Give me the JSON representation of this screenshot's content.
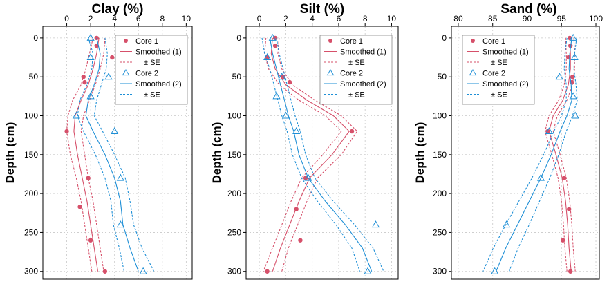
{
  "colors": {
    "core1": "#d6506a",
    "core2": "#1e8fd6"
  },
  "chart_data": [
    {
      "type": "line",
      "title": "Clay (%)",
      "xlabel": "",
      "ylabel": "Depth (cm)",
      "xlim": [
        -2,
        10.5
      ],
      "ylim": [
        310,
        -15
      ],
      "xticks": [
        0,
        2,
        4,
        6,
        8,
        10
      ],
      "yticks": [
        0,
        50,
        100,
        150,
        200,
        250,
        300
      ],
      "grid": true,
      "axis_position": "x-top",
      "legend_position": "top-right",
      "legend": [
        "Core 1",
        "Smoothed (1)",
        "± SE",
        "Core 2",
        "Smoothed (2)",
        "± SE"
      ],
      "series": [
        {
          "name": "Core 1",
          "kind": "points",
          "marker": "circle",
          "color": "core1",
          "x": [
            2.5,
            2.5,
            3.8,
            1.4,
            1.5,
            0,
            1.8,
            1.1,
            2.0,
            3.2
          ],
          "y": [
            0,
            10,
            25,
            50,
            57,
            120,
            180,
            217,
            260,
            300
          ]
        },
        {
          "name": "Smoothed (1)",
          "kind": "line",
          "style": "solid",
          "color": "core1",
          "x": [
            2.7,
            2.5,
            2.2,
            1.8,
            1.2,
            0.7,
            0.6,
            0.9,
            1.3,
            1.7,
            2.0,
            2.3,
            2.6
          ],
          "y": [
            0,
            20,
            40,
            60,
            80,
            100,
            120,
            150,
            180,
            210,
            240,
            270,
            300
          ]
        },
        {
          "name": "± SE",
          "kind": "line",
          "style": "dashed",
          "color": "core1",
          "x": [
            3.2,
            3.1,
            2.8,
            2.4,
            1.9,
            1.4,
            1.2,
            1.5,
            1.8,
            2.2,
            2.5,
            2.8,
            3.1
          ],
          "y": [
            0,
            20,
            40,
            60,
            80,
            100,
            120,
            150,
            180,
            210,
            240,
            270,
            300
          ]
        },
        {
          "name": "± SE",
          "kind": "line",
          "style": "dashed",
          "color": "core1",
          "x": [
            2.2,
            1.9,
            1.6,
            1.2,
            0.5,
            0.1,
            0.0,
            0.3,
            0.8,
            1.2,
            1.5,
            1.8,
            2.1
          ],
          "y": [
            0,
            20,
            40,
            60,
            80,
            100,
            120,
            150,
            180,
            210,
            240,
            270,
            300
          ]
        },
        {
          "name": "Core 2",
          "kind": "points",
          "marker": "triangle",
          "color": "core2",
          "x": [
            2.0,
            2.0,
            3.5,
            2.0,
            0.8,
            4.0,
            4.5,
            4.5,
            6.4
          ],
          "y": [
            0,
            25,
            50,
            75,
            100,
            120,
            180,
            240,
            300
          ]
        },
        {
          "name": "Smoothed (2)",
          "kind": "line",
          "style": "solid",
          "color": "core2",
          "x": [
            2.5,
            2.8,
            2.7,
            2.3,
            1.8,
            1.6,
            2.2,
            3.2,
            4.0,
            4.5,
            4.7,
            5.3,
            6.0
          ],
          "y": [
            0,
            20,
            40,
            60,
            80,
            100,
            120,
            150,
            180,
            210,
            240,
            270,
            300
          ]
        },
        {
          "name": "± SE",
          "kind": "line",
          "style": "dashed",
          "color": "core2",
          "x": [
            3.2,
            3.4,
            3.3,
            2.9,
            2.5,
            2.3,
            3.0,
            4.0,
            4.9,
            5.3,
            5.6,
            6.3,
            7.3
          ],
          "y": [
            0,
            20,
            40,
            60,
            80,
            100,
            120,
            150,
            180,
            210,
            240,
            270,
            300
          ]
        },
        {
          "name": "± SE",
          "kind": "line",
          "style": "dashed",
          "color": "core2",
          "x": [
            1.8,
            2.2,
            2.1,
            1.7,
            1.1,
            0.9,
            1.4,
            2.4,
            3.2,
            3.7,
            3.9,
            4.4,
            4.8
          ],
          "y": [
            0,
            20,
            40,
            60,
            80,
            100,
            120,
            150,
            180,
            210,
            240,
            270,
            300
          ]
        }
      ]
    },
    {
      "type": "line",
      "title": "Silt (%)",
      "xlabel": "",
      "ylabel": "Depth (cm)",
      "xlim": [
        -1,
        10.5
      ],
      "ylim": [
        310,
        -15
      ],
      "xticks": [
        0,
        2,
        4,
        6,
        8,
        10
      ],
      "yticks": [
        0,
        50,
        100,
        150,
        200,
        250,
        300
      ],
      "grid": true,
      "axis_position": "x-top",
      "legend_position": "top-right",
      "legend": [
        "Core 1",
        "Smoothed (1)",
        "± SE",
        "Core 2",
        "Smoothed (2)",
        "± SE"
      ],
      "series": [
        {
          "name": "Core 1",
          "kind": "points",
          "marker": "circle",
          "color": "core1",
          "x": [
            1.2,
            1.2,
            0.6,
            1.8,
            2.3,
            7.0,
            3.5,
            2.8,
            3.1,
            0.6
          ],
          "y": [
            0,
            10,
            25,
            50,
            57,
            120,
            180,
            220,
            260,
            300
          ]
        },
        {
          "name": "Smoothed (1)",
          "kind": "line",
          "style": "solid",
          "color": "core1",
          "x": [
            1.0,
            0.9,
            1.2,
            2.0,
            3.6,
            5.6,
            6.8,
            5.5,
            3.8,
            3.0,
            2.3,
            1.6,
            1.0
          ],
          "y": [
            0,
            20,
            40,
            60,
            80,
            100,
            120,
            150,
            180,
            210,
            240,
            270,
            300
          ]
        },
        {
          "name": "± SE",
          "kind": "line",
          "style": "dashed",
          "color": "core1",
          "x": [
            1.5,
            1.4,
            1.7,
            2.5,
            4.2,
            6.2,
            7.4,
            6.2,
            4.4,
            3.6,
            2.9,
            2.2,
            1.7
          ],
          "y": [
            0,
            20,
            40,
            60,
            80,
            100,
            120,
            150,
            180,
            210,
            240,
            270,
            300
          ]
        },
        {
          "name": "± SE",
          "kind": "line",
          "style": "dashed",
          "color": "core1",
          "x": [
            0.5,
            0.4,
            0.7,
            1.5,
            3.0,
            5.0,
            6.2,
            4.8,
            3.2,
            2.4,
            1.7,
            1.0,
            0.3
          ],
          "y": [
            0,
            20,
            40,
            60,
            80,
            100,
            120,
            150,
            180,
            210,
            240,
            270,
            300
          ]
        },
        {
          "name": "Core 2",
          "kind": "points",
          "marker": "triangle",
          "color": "core2",
          "x": [
            1.0,
            0.6,
            1.7,
            1.3,
            2.0,
            2.8,
            3.7,
            8.8,
            8.2
          ],
          "y": [
            0,
            25,
            50,
            75,
            100,
            120,
            180,
            240,
            300
          ]
        },
        {
          "name": "Smoothed (2)",
          "kind": "line",
          "style": "solid",
          "color": "core2",
          "x": [
            0.8,
            1.0,
            1.3,
            1.6,
            1.9,
            2.2,
            2.6,
            3.0,
            3.7,
            5.0,
            6.5,
            7.8,
            8.5
          ],
          "y": [
            0,
            20,
            40,
            60,
            80,
            100,
            120,
            150,
            180,
            210,
            240,
            270,
            300
          ]
        },
        {
          "name": "± SE",
          "kind": "line",
          "style": "dashed",
          "color": "core2",
          "x": [
            1.3,
            1.5,
            1.8,
            2.1,
            2.4,
            2.7,
            3.1,
            3.5,
            4.2,
            5.6,
            7.2,
            8.6,
            9.4
          ],
          "y": [
            0,
            20,
            40,
            60,
            80,
            100,
            120,
            150,
            180,
            210,
            240,
            270,
            300
          ]
        },
        {
          "name": "± SE",
          "kind": "line",
          "style": "dashed",
          "color": "core2",
          "x": [
            0.2,
            0.4,
            0.8,
            1.1,
            1.4,
            1.7,
            2.1,
            2.5,
            3.2,
            4.4,
            5.8,
            7.0,
            7.6
          ],
          "y": [
            0,
            20,
            40,
            60,
            80,
            100,
            120,
            150,
            180,
            210,
            240,
            270,
            300
          ]
        }
      ]
    },
    {
      "type": "line",
      "title": "Sand (%)",
      "xlabel": "",
      "ylabel": "Depth (cm)",
      "xlim": [
        79,
        100.5
      ],
      "ylim": [
        310,
        -15
      ],
      "xticks": [
        80,
        85,
        90,
        95,
        100
      ],
      "yticks": [
        0,
        50,
        100,
        150,
        200,
        250,
        300
      ],
      "grid": true,
      "axis_position": "x-top",
      "legend_position": "top-left",
      "legend": [
        "Core 1",
        "Smoothed (1)",
        "± SE",
        "Core 2",
        "Smoothed (2)",
        "± SE"
      ],
      "series": [
        {
          "name": "Core 1",
          "kind": "points",
          "marker": "circle",
          "color": "core1",
          "x": [
            96.2,
            96.3,
            96.0,
            96.6,
            96.5,
            93.0,
            95.4,
            96.1,
            95.2,
            96.3
          ],
          "y": [
            0,
            10,
            25,
            50,
            57,
            120,
            180,
            220,
            260,
            300
          ]
        },
        {
          "name": "Smoothed (1)",
          "kind": "line",
          "style": "solid",
          "color": "core1",
          "x": [
            96.2,
            96.3,
            96.3,
            96.0,
            95.2,
            93.8,
            93.2,
            94.2,
            95.1,
            95.6,
            95.9,
            96.1,
            96.4
          ],
          "y": [
            0,
            20,
            40,
            60,
            80,
            100,
            120,
            150,
            180,
            210,
            240,
            270,
            300
          ]
        },
        {
          "name": "± SE",
          "kind": "line",
          "style": "dashed",
          "color": "core1",
          "x": [
            96.8,
            96.9,
            96.9,
            96.6,
            95.8,
            94.4,
            93.8,
            94.8,
            95.7,
            96.2,
            96.5,
            96.7,
            97.0
          ],
          "y": [
            0,
            20,
            40,
            60,
            80,
            100,
            120,
            150,
            180,
            210,
            240,
            270,
            300
          ]
        },
        {
          "name": "± SE",
          "kind": "line",
          "style": "dashed",
          "color": "core1",
          "x": [
            95.6,
            95.7,
            95.7,
            95.4,
            94.6,
            93.2,
            92.6,
            93.6,
            94.5,
            95.0,
            95.3,
            95.5,
            95.8
          ],
          "y": [
            0,
            20,
            40,
            60,
            80,
            100,
            120,
            150,
            180,
            210,
            240,
            270,
            300
          ]
        },
        {
          "name": "Core 2",
          "kind": "points",
          "marker": "triangle",
          "color": "core2",
          "x": [
            96.7,
            96.9,
            94.7,
            96.7,
            97.0,
            93.2,
            92.0,
            87.0,
            85.3
          ],
          "y": [
            0,
            25,
            50,
            75,
            100,
            120,
            180,
            240,
            300
          ]
        },
        {
          "name": "Smoothed (2)",
          "kind": "line",
          "style": "solid",
          "color": "core2",
          "x": [
            96.5,
            96.2,
            96.1,
            96.4,
            96.5,
            95.8,
            94.8,
            93.5,
            92.0,
            90.3,
            88.6,
            86.9,
            85.5
          ],
          "y": [
            0,
            20,
            40,
            60,
            80,
            100,
            120,
            150,
            180,
            210,
            240,
            270,
            300
          ]
        },
        {
          "name": "± SE",
          "kind": "line",
          "style": "dashed",
          "color": "core2",
          "x": [
            97.2,
            96.9,
            96.8,
            97.1,
            97.3,
            96.6,
            95.7,
            94.6,
            93.3,
            91.8,
            90.3,
            88.7,
            87.4
          ],
          "y": [
            0,
            20,
            40,
            60,
            80,
            100,
            120,
            150,
            180,
            210,
            240,
            270,
            300
          ]
        },
        {
          "name": "± SE",
          "kind": "line",
          "style": "dashed",
          "color": "core2",
          "x": [
            95.8,
            95.5,
            95.4,
            95.7,
            95.7,
            95.0,
            93.9,
            92.4,
            90.7,
            88.8,
            86.9,
            85.1,
            83.6
          ],
          "y": [
            0,
            20,
            40,
            60,
            80,
            100,
            120,
            150,
            180,
            210,
            240,
            270,
            300
          ]
        }
      ]
    }
  ]
}
